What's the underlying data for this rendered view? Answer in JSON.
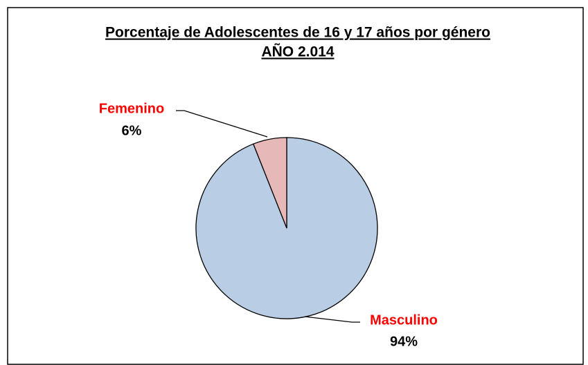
{
  "chart_data": {
    "type": "pie",
    "title": "Porcentaje de Adolescentes de 16 y 17 años por género",
    "subtitle": "AÑO 2.014",
    "categories": [
      "Masculino",
      "Femenino"
    ],
    "values": [
      94,
      6
    ],
    "value_labels": [
      "94%",
      "6%"
    ],
    "colors": [
      "#b9cde5",
      "#e6b9b8"
    ]
  }
}
